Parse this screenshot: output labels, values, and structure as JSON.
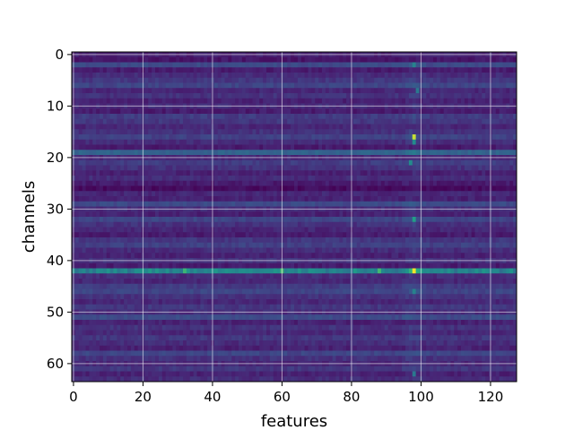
{
  "chart_data": {
    "type": "heatmap",
    "title": "",
    "xlabel": "features",
    "ylabel": "channels",
    "colormap": "viridis",
    "grid": true,
    "n_rows": 64,
    "n_cols": 128,
    "xlim": [
      -0.5,
      127.5
    ],
    "ylim": [
      63.5,
      -0.5
    ],
    "xticks": [
      0,
      20,
      40,
      60,
      80,
      100,
      120
    ],
    "yticks": [
      0,
      10,
      20,
      30,
      40,
      50,
      60
    ],
    "value_range": [
      0,
      1
    ],
    "row_base_values": [
      0.12,
      0.08,
      0.28,
      0.1,
      0.16,
      0.2,
      0.26,
      0.14,
      0.18,
      0.12,
      0.16,
      0.1,
      0.22,
      0.2,
      0.14,
      0.18,
      0.24,
      0.16,
      0.1,
      0.4,
      0.14,
      0.22,
      0.18,
      0.12,
      0.16,
      0.1,
      0.04,
      0.14,
      0.12,
      0.28,
      0.16,
      0.12,
      0.26,
      0.18,
      0.14,
      0.1,
      0.2,
      0.24,
      0.16,
      0.12,
      0.18,
      0.1,
      0.55,
      0.16,
      0.14,
      0.22,
      0.26,
      0.18,
      0.14,
      0.2,
      0.16,
      0.28,
      0.12,
      0.18,
      0.14,
      0.2,
      0.16,
      0.12,
      0.26,
      0.18,
      0.14,
      0.2,
      0.12,
      0.16
    ],
    "hotspots": [
      {
        "row": 2,
        "col": 98,
        "value": 0.55
      },
      {
        "row": 7,
        "col": 99,
        "value": 0.5
      },
      {
        "row": 16,
        "col": 98,
        "value": 0.95
      },
      {
        "row": 17,
        "col": 98,
        "value": 0.6
      },
      {
        "row": 21,
        "col": 97,
        "value": 0.6
      },
      {
        "row": 32,
        "col": 98,
        "value": 0.7
      },
      {
        "row": 42,
        "col": 32,
        "value": 0.8
      },
      {
        "row": 42,
        "col": 60,
        "value": 0.7
      },
      {
        "row": 42,
        "col": 88,
        "value": 0.8
      },
      {
        "row": 42,
        "col": 98,
        "value": 0.9
      },
      {
        "row": 46,
        "col": 98,
        "value": 0.55
      },
      {
        "row": 62,
        "col": 98,
        "value": 0.5
      }
    ],
    "column_band": {
      "col": 98,
      "strength": 0.25
    }
  }
}
